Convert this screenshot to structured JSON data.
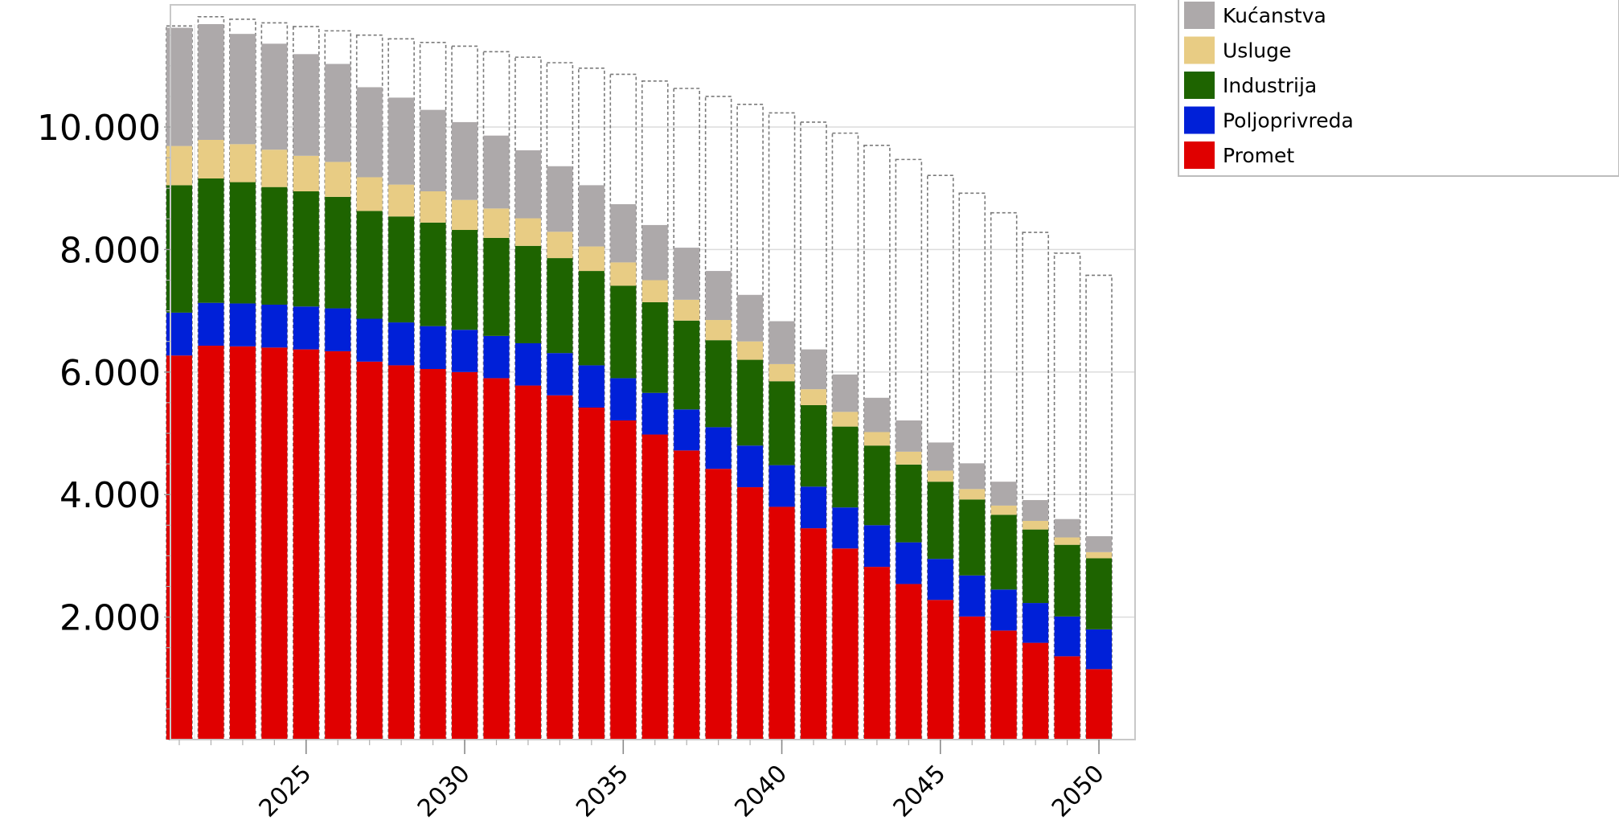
{
  "chart_data": {
    "type": "bar",
    "stacked": true,
    "title": "",
    "xlabel": "",
    "ylabel": "",
    "x": [
      2021,
      2022,
      2023,
      2024,
      2025,
      2026,
      2027,
      2028,
      2029,
      2030,
      2031,
      2032,
      2033,
      2034,
      2035,
      2036,
      2037,
      2038,
      2039,
      2040,
      2041,
      2042,
      2043,
      2044,
      2045,
      2046,
      2047,
      2048,
      2049,
      2050
    ],
    "x_tick_labels": [
      "2025",
      "2030",
      "2035",
      "2040",
      "2045",
      "2050"
    ],
    "y_tick_labels": [
      "2.000",
      "4.000",
      "6.000",
      "8.000",
      "10.000"
    ],
    "y_tick_values": [
      2000,
      4000,
      6000,
      8000,
      10000
    ],
    "ylim": [
      0,
      12000
    ],
    "grid": true,
    "legend_position": "top-right outside",
    "series": [
      {
        "name": "Promet",
        "color": "#e00000",
        "values": [
          6270,
          6430,
          6420,
          6400,
          6370,
          6340,
          6170,
          6110,
          6050,
          6000,
          5900,
          5780,
          5620,
          5420,
          5210,
          4980,
          4720,
          4420,
          4120,
          3800,
          3450,
          3120,
          2820,
          2540,
          2280,
          2010,
          1780,
          1580,
          1360,
          1150
        ]
      },
      {
        "name": "Poljoprivreda",
        "color": "#0020d8",
        "values": [
          700,
          700,
          700,
          700,
          700,
          700,
          700,
          700,
          700,
          690,
          690,
          690,
          690,
          690,
          690,
          680,
          670,
          680,
          680,
          680,
          680,
          670,
          680,
          680,
          670,
          670,
          670,
          650,
          650,
          650
        ]
      },
      {
        "name": "Industrija",
        "color": "#1e6400",
        "values": [
          2080,
          2030,
          1980,
          1920,
          1880,
          1820,
          1760,
          1730,
          1690,
          1630,
          1600,
          1590,
          1550,
          1540,
          1510,
          1480,
          1450,
          1420,
          1400,
          1370,
          1330,
          1320,
          1300,
          1270,
          1260,
          1240,
          1220,
          1200,
          1170,
          1160
        ]
      },
      {
        "name": "Usluge",
        "color": "#e8cc84",
        "values": [
          640,
          630,
          620,
          610,
          580,
          570,
          550,
          520,
          510,
          490,
          480,
          450,
          430,
          400,
          380,
          360,
          340,
          330,
          300,
          280,
          260,
          240,
          220,
          210,
          180,
          170,
          150,
          140,
          120,
          100
        ]
      },
      {
        "name": "Kućanstva",
        "color": "#ada9aa",
        "values": [
          1930,
          1890,
          1800,
          1730,
          1660,
          1600,
          1470,
          1420,
          1330,
          1270,
          1190,
          1110,
          1070,
          1000,
          950,
          900,
          850,
          800,
          760,
          700,
          650,
          610,
          560,
          510,
          460,
          420,
          390,
          340,
          300,
          260
        ]
      }
    ],
    "outline_totals": [
      11650,
      11800,
      11760,
      11700,
      11640,
      11570,
      11500,
      11440,
      11380,
      11320,
      11230,
      11140,
      11050,
      10960,
      10860,
      10750,
      10630,
      10500,
      10370,
      10230,
      10080,
      9900,
      9700,
      9470,
      9210,
      8920,
      8600,
      8280,
      7940,
      7580
    ]
  }
}
